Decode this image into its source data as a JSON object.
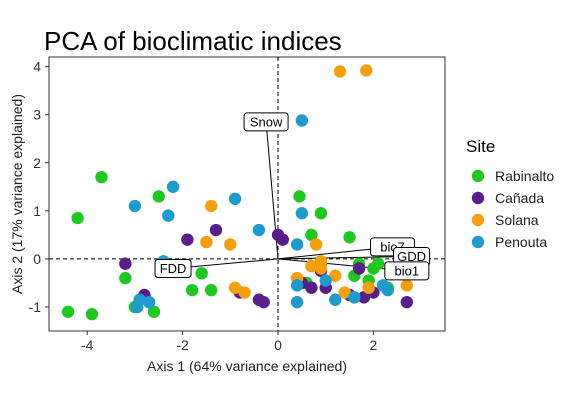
{
  "chart_data": {
    "type": "scatter",
    "title": "PCA of bioclimatic indices",
    "xlabel": "Axis 1 (64% variance explained)",
    "ylabel": "Axis 2 (17% variance explained)",
    "xlim": [
      -4.8,
      3.5
    ],
    "ylim": [
      -1.5,
      4.2
    ],
    "x_ticks": [
      -4,
      -2,
      0,
      2
    ],
    "y_ticks": [
      -1,
      0,
      1,
      2,
      3,
      4
    ],
    "reference_lines": {
      "x": 0,
      "y": 0,
      "style": "dashed"
    },
    "legend": {
      "title": "Site",
      "position": "right"
    },
    "series": [
      {
        "name": "Rabinalto",
        "color": "#1ec81e",
        "points": [
          {
            "x": -4.2,
            "y": 0.85
          },
          {
            "x": -3.7,
            "y": 1.7
          },
          {
            "x": -4.4,
            "y": -1.1
          },
          {
            "x": -3.9,
            "y": -1.15
          },
          {
            "x": -3.2,
            "y": -0.4
          },
          {
            "x": -3.0,
            "y": -1.0
          },
          {
            "x": -2.6,
            "y": -1.1
          },
          {
            "x": -2.5,
            "y": 1.3
          },
          {
            "x": -1.6,
            "y": -0.3
          },
          {
            "x": -1.4,
            "y": -0.65
          },
          {
            "x": -1.8,
            "y": -0.65
          },
          {
            "x": 0.9,
            "y": 0.95
          },
          {
            "x": 0.7,
            "y": 0.5
          },
          {
            "x": 0.9,
            "y": -0.1
          },
          {
            "x": 1.5,
            "y": 0.45
          },
          {
            "x": 1.7,
            "y": -0.1
          },
          {
            "x": 1.6,
            "y": -0.35
          },
          {
            "x": 1.9,
            "y": -0.45
          },
          {
            "x": 2.0,
            "y": -0.2
          },
          {
            "x": 2.1,
            "y": -0.1
          },
          {
            "x": 2.3,
            "y": -0.6
          },
          {
            "x": 0.45,
            "y": 1.3
          },
          {
            "x": 0.6,
            "y": -0.5
          }
        ]
      },
      {
        "name": "Cañada",
        "color": "#5a1e8c",
        "points": [
          {
            "x": -3.2,
            "y": -0.1
          },
          {
            "x": -2.8,
            "y": -0.75
          },
          {
            "x": -1.9,
            "y": 0.4
          },
          {
            "x": -1.3,
            "y": 0.6
          },
          {
            "x": -0.8,
            "y": -0.7
          },
          {
            "x": -0.4,
            "y": -0.85
          },
          {
            "x": -0.3,
            "y": -0.9
          },
          {
            "x": 0.0,
            "y": 0.5
          },
          {
            "x": 0.1,
            "y": 0.4
          },
          {
            "x": 0.5,
            "y": -0.5
          },
          {
            "x": 0.7,
            "y": -0.6
          },
          {
            "x": 1.0,
            "y": -0.6
          },
          {
            "x": 1.5,
            "y": -0.75
          },
          {
            "x": 1.8,
            "y": -0.8
          },
          {
            "x": 2.0,
            "y": -0.7
          },
          {
            "x": 2.7,
            "y": -0.9
          },
          {
            "x": 1.7,
            "y": -0.2
          },
          {
            "x": 0.9,
            "y": -0.25
          }
        ]
      },
      {
        "name": "Solana",
        "color": "#f5a00a",
        "points": [
          {
            "x": 1.3,
            "y": 3.9
          },
          {
            "x": 1.85,
            "y": 3.92
          },
          {
            "x": -1.4,
            "y": 1.1
          },
          {
            "x": -1.5,
            "y": 0.35
          },
          {
            "x": -1.0,
            "y": 0.3
          },
          {
            "x": -0.9,
            "y": -0.6
          },
          {
            "x": -0.7,
            "y": -0.7
          },
          {
            "x": 0.4,
            "y": -0.4
          },
          {
            "x": 0.8,
            "y": 0.3
          },
          {
            "x": 0.9,
            "y": -0.2
          },
          {
            "x": 0.7,
            "y": -0.15
          },
          {
            "x": 1.2,
            "y": -0.35
          },
          {
            "x": 1.4,
            "y": -0.7
          },
          {
            "x": 1.9,
            "y": -0.6
          },
          {
            "x": 2.2,
            "y": 0.3
          },
          {
            "x": 2.7,
            "y": -0.55
          },
          {
            "x": 0.9,
            "y": -0.05
          }
        ]
      },
      {
        "name": "Penouta",
        "color": "#1e9bcd",
        "points": [
          {
            "x": -2.2,
            "y": 1.5
          },
          {
            "x": -2.3,
            "y": 0.9
          },
          {
            "x": -3.0,
            "y": 1.1
          },
          {
            "x": -0.9,
            "y": 1.25
          },
          {
            "x": -0.4,
            "y": 0.6
          },
          {
            "x": 0.5,
            "y": 2.88
          },
          {
            "x": 0.5,
            "y": 0.95
          },
          {
            "x": 0.4,
            "y": 0.3
          },
          {
            "x": -2.4,
            "y": -0.05
          },
          {
            "x": -2.9,
            "y": -0.85
          },
          {
            "x": -2.95,
            "y": -1.0
          },
          {
            "x": -2.7,
            "y": -0.9
          },
          {
            "x": 0.4,
            "y": -0.9
          },
          {
            "x": 0.4,
            "y": -0.55
          },
          {
            "x": 1.2,
            "y": -0.85
          },
          {
            "x": 1.0,
            "y": -0.45
          },
          {
            "x": 1.6,
            "y": -0.8
          },
          {
            "x": 2.3,
            "y": -0.65
          },
          {
            "x": 2.2,
            "y": -0.55
          }
        ]
      }
    ],
    "loadings": [
      {
        "name": "Snow",
        "x": -0.25,
        "y": 2.85,
        "end_x": 0.0,
        "end_y": 0.0
      },
      {
        "name": "FDD",
        "x": -2.2,
        "y": -0.2,
        "end_x": 0.0,
        "end_y": 0.0
      },
      {
        "name": "bio7",
        "x": 2.4,
        "y": 0.25,
        "end_x": 0.0,
        "end_y": 0.0
      },
      {
        "name": "GDD",
        "x": 2.8,
        "y": 0.05,
        "end_x": 0.0,
        "end_y": 0.0
      },
      {
        "name": "bio1",
        "x": 2.7,
        "y": -0.25,
        "end_x": 0.0,
        "end_y": 0.0
      }
    ]
  }
}
